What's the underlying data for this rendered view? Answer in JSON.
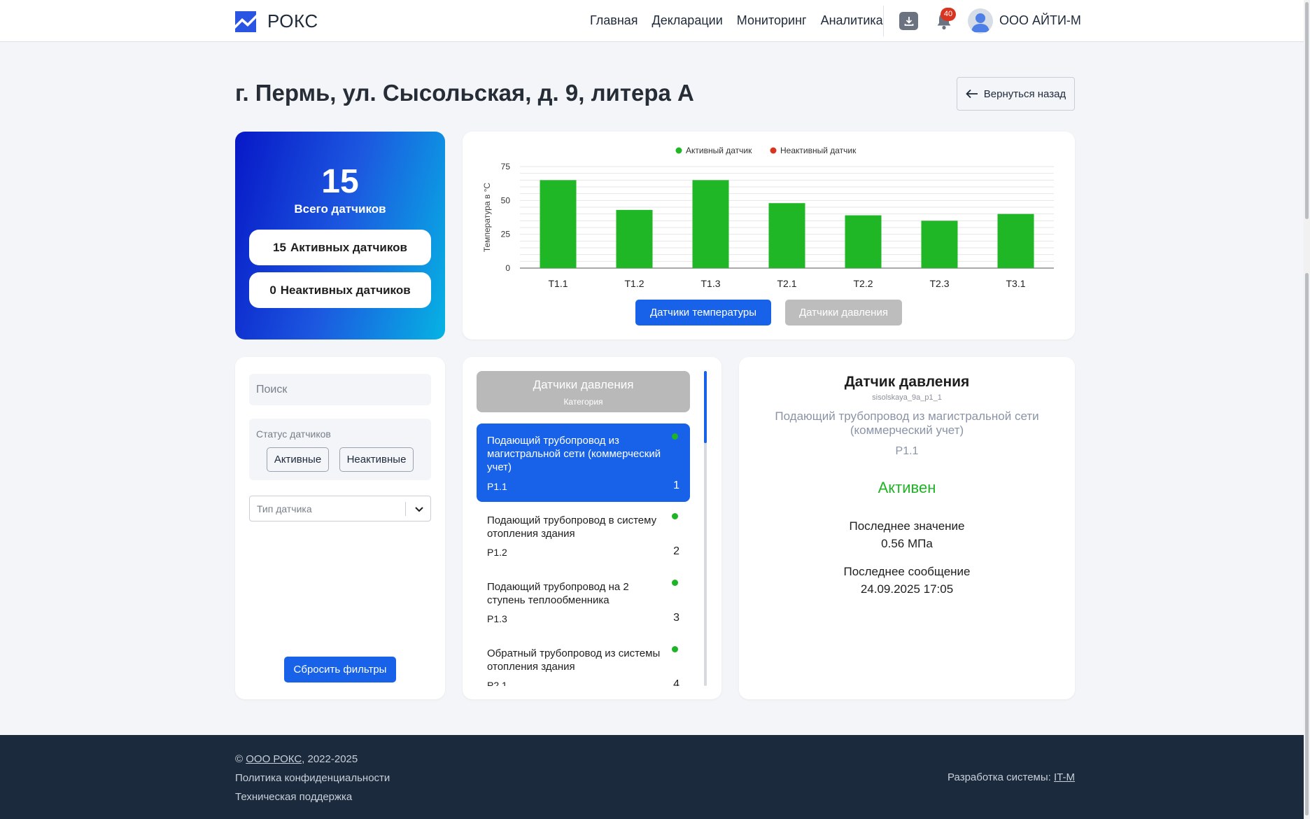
{
  "header": {
    "logo_text": "РОКС",
    "nav": [
      "Главная",
      "Декларации",
      "Мониторинг",
      "Аналитика"
    ],
    "notifications_count": "40",
    "company": "ООО АЙТИ-М"
  },
  "page": {
    "title": "г. Пермь, ул. Сысольская, д. 9, литера А",
    "back_label": "Вернуться назад"
  },
  "summary": {
    "total": "15",
    "total_label": "Всего датчиков",
    "active_count": "15",
    "active_label": "Активных датчиков",
    "inactive_count": "0",
    "inactive_label": "Неактивных датчиков"
  },
  "chart_tabs": {
    "temperature": "Датчики температуры",
    "pressure": "Датчики давления"
  },
  "chart_data": {
    "type": "bar",
    "title": "",
    "xlabel": "",
    "ylabel": "Температура в °С",
    "categories": [
      "T1.1",
      "T1.2",
      "T1.3",
      "T2.1",
      "T2.2",
      "T2.3",
      "T3.1"
    ],
    "series": [
      {
        "values": [
          65,
          43,
          65,
          48,
          39,
          35,
          40
        ],
        "color": "#20b726"
      }
    ],
    "ylim": [
      0,
      75
    ],
    "yticks": [
      0,
      25,
      50,
      75
    ],
    "legend": [
      {
        "label": "Активный датчик",
        "color": "#20b726"
      },
      {
        "label": "Неактивный датчик",
        "color": "#d9341f"
      }
    ],
    "legend_position": "top-center",
    "grid": true
  },
  "filters": {
    "search_placeholder": "Поиск",
    "status_label": "Статус датчиков",
    "active_btn": "Активные",
    "inactive_btn": "Неактивные",
    "type_placeholder": "Тип датчика",
    "reset_btn": "Сбросить фильтры"
  },
  "list": {
    "category_title": "Датчики давления",
    "category_sub": "Категория",
    "items": [
      {
        "name": "Подающий трубопровод из магистральной сети (коммерческий учет)",
        "code": "P1.1",
        "num": "1",
        "status_color": "#1fb425"
      },
      {
        "name": "Подающий трубопровод в систему отопления здания",
        "code": "P1.2",
        "num": "2",
        "status_color": "#1fb425"
      },
      {
        "name": "Подающий трубопровод на 2 ступень теплообменника",
        "code": "P1.3",
        "num": "3",
        "status_color": "#1fb425"
      },
      {
        "name": "Обратный трубопровод из системы отопления здания",
        "code": "P2.1",
        "num": "4",
        "status_color": "#1fb425"
      }
    ]
  },
  "detail": {
    "title": "Датчик давления",
    "id": "sisolskaya_9a_p1_1",
    "description": "Подающий трубопровод из магистральной сети (коммерческий учет)",
    "code": "P1.1",
    "status": "Активен",
    "last_value_label": "Последнее значение",
    "last_value": "0.56 МПа",
    "last_message_label": "Последнее сообщение",
    "last_message": "24.09.2025 17:05"
  },
  "footer": {
    "copyright_prefix": "©",
    "company_link": "ООО РОКС",
    "years": ", 2022-2025",
    "privacy": "Политика конфиденциальности",
    "support": "Техническая поддержка",
    "dev_label": "Разработка системы:",
    "dev_link": "IT-M"
  },
  "colors": {
    "accent": "#1762e8",
    "active": "#1fb425",
    "inactive": "#d9341f",
    "footer_bg": "#1b2a3c"
  }
}
